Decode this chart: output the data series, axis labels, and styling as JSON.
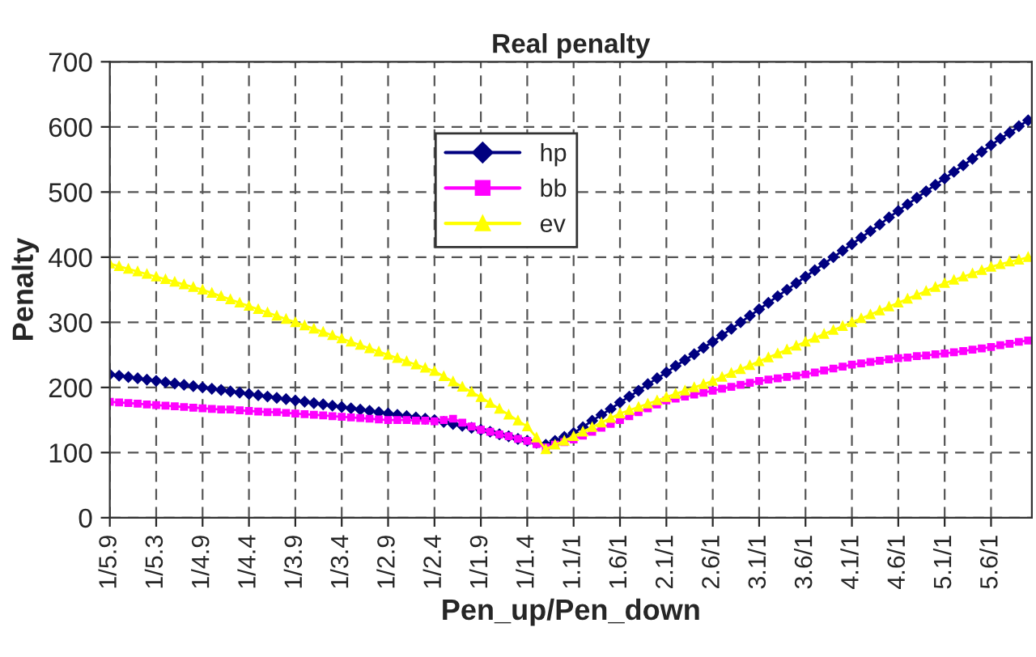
{
  "chart_data": {
    "type": "line",
    "title": "Real penalty",
    "xlabel": "Pen_up/Pen_down",
    "ylabel": "Penalty",
    "categories": [
      "1/5.9",
      null,
      null,
      null,
      null,
      "1/5.3",
      null,
      null,
      null,
      null,
      "1/4.9",
      null,
      null,
      null,
      null,
      "1/4.4",
      null,
      null,
      null,
      null,
      "1/3.9",
      null,
      null,
      null,
      null,
      "1/3.4",
      null,
      null,
      null,
      null,
      "1/2.9",
      null,
      null,
      null,
      null,
      "1/2.4",
      null,
      null,
      null,
      null,
      "1/1.9",
      null,
      null,
      null,
      null,
      "1/1.4",
      null,
      null,
      null,
      null,
      "1.1/1",
      null,
      null,
      null,
      null,
      "1.6/1",
      null,
      null,
      null,
      null,
      "2.1/1",
      null,
      null,
      null,
      null,
      "2.6/1",
      null,
      null,
      null,
      null,
      "3.1/1",
      null,
      null,
      null,
      null,
      "3.6/1",
      null,
      null,
      null,
      null,
      "4.1/1",
      null,
      null,
      null,
      null,
      "4.6/1",
      null,
      null,
      null,
      null,
      "5.1/1",
      null,
      null,
      null,
      null,
      "5.6/1",
      null,
      null,
      null,
      null
    ],
    "series": [
      {
        "name": "hp",
        "color": "#000080",
        "marker": "diamond",
        "values": [
          220,
          218,
          216,
          214,
          212,
          210,
          208,
          206,
          204,
          202,
          200,
          198,
          196,
          194,
          192,
          190,
          188,
          186,
          184,
          182,
          180,
          178,
          176,
          174,
          172,
          170,
          168,
          166,
          164,
          162,
          160,
          158,
          156,
          154,
          152,
          150,
          147,
          144,
          141,
          138,
          135,
          132,
          128,
          125,
          121,
          118,
          115,
          112,
          118,
          124,
          130,
          139,
          149,
          158,
          167,
          177,
          186,
          195,
          205,
          214,
          223,
          233,
          242,
          251,
          261,
          270,
          280,
          290,
          300,
          310,
          320,
          330,
          340,
          350,
          360,
          370,
          380,
          390,
          400,
          410,
          420,
          430,
          440,
          450,
          461,
          471,
          481,
          491,
          501,
          511,
          521,
          531,
          541,
          551,
          562,
          572,
          582,
          591,
          601,
          610
        ]
      },
      {
        "name": "bb",
        "color": "#ff00ff",
        "marker": "square",
        "values": [
          178,
          177,
          176,
          175,
          174,
          173,
          172,
          171,
          170,
          169,
          168,
          167,
          166,
          166,
          165,
          164,
          163,
          162,
          162,
          161,
          160,
          159,
          158,
          157,
          156,
          155,
          154,
          153,
          152,
          151,
          150,
          150,
          150,
          149,
          149,
          148,
          150,
          152,
          146,
          140,
          135,
          132,
          128,
          125,
          121,
          118,
          113,
          108,
          112,
          116,
          120,
          126,
          132,
          138,
          144,
          150,
          156,
          162,
          168,
          174,
          180,
          183,
          186,
          189,
          192,
          195,
          198,
          201,
          204,
          207,
          210,
          212,
          214,
          216,
          218,
          220,
          223,
          226,
          229,
          232,
          235,
          237,
          239,
          241,
          243,
          245,
          246,
          248,
          249,
          251,
          252,
          254,
          256,
          258,
          260,
          262,
          265,
          267,
          270,
          272
        ]
      },
      {
        "name": "ev",
        "color": "#ffff00",
        "marker": "triangle",
        "values": [
          390,
          386,
          382,
          378,
          374,
          370,
          366,
          362,
          358,
          354,
          350,
          345,
          340,
          335,
          330,
          325,
          320,
          315,
          310,
          305,
          300,
          295,
          290,
          285,
          280,
          275,
          270,
          265,
          260,
          255,
          250,
          245,
          240,
          235,
          230,
          225,
          217,
          209,
          201,
          193,
          185,
          176,
          167,
          158,
          149,
          140,
          123,
          105,
          112,
          118,
          125,
          132,
          139,
          146,
          153,
          160,
          165,
          170,
          175,
          180,
          185,
          190,
          195,
          200,
          205,
          210,
          216,
          222,
          228,
          234,
          240,
          246,
          252,
          258,
          264,
          270,
          276,
          282,
          288,
          294,
          300,
          306,
          312,
          318,
          324,
          330,
          336,
          342,
          348,
          354,
          360,
          365,
          370,
          375,
          380,
          385,
          389,
          393,
          396,
          400
        ]
      }
    ],
    "ylim": [
      0,
      700
    ],
    "yticks": [
      0,
      100,
      200,
      300,
      400,
      500,
      600,
      700
    ],
    "grid": true,
    "legend": "top",
    "line_style": "solid"
  }
}
